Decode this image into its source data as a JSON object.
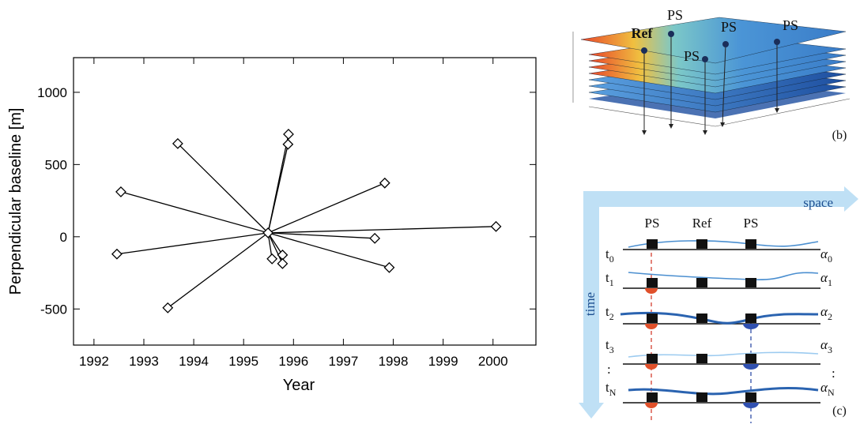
{
  "chart_data": {
    "type": "scatter",
    "x_label": "Year",
    "y_label": "Perpendicular baseline [m]",
    "series": [
      {
        "color": "#000000",
        "x": [
          1995.49,
          1992.54,
          1992.46,
          1993.68,
          1993.48,
          1995.9,
          1995.89,
          1997.83,
          1997.63,
          1997.92,
          2000.06,
          1995.57,
          1995.78,
          1995.78
        ],
        "values": [
          27,
          311,
          -120,
          645,
          -492,
          710,
          640,
          372,
          -11,
          -213,
          71,
          -153,
          -126,
          -186
        ]
      }
    ],
    "xlim": [
      1991.59,
      2000.86
    ],
    "xticks": [
      1992,
      1993,
      1994,
      1995,
      1996,
      1997,
      1998,
      1999,
      2000
    ],
    "ylim": [
      -750,
      1240
    ],
    "yticks": [
      -500,
      0,
      500,
      1000
    ]
  },
  "panel_b": {
    "ref": "Ref",
    "ps": [
      "PS",
      "PS",
      "PS",
      "PS"
    ],
    "label": "(b)"
  },
  "panel_c": {
    "space": "space",
    "time": "time",
    "columns": [
      "PS",
      "Ref",
      "PS"
    ],
    "rows": [
      {
        "t": "t",
        "t_sub": "0",
        "a": "α",
        "a_sub": "0"
      },
      {
        "t": "t",
        "t_sub": "1",
        "a": "α",
        "a_sub": "1"
      },
      {
        "t": "t",
        "t_sub": "2",
        "a": "α",
        "a_sub": "2"
      },
      {
        "t": "t",
        "t_sub": "3",
        "a": "α",
        "a_sub": "3"
      },
      {
        "t": "t",
        "t_sub": "N",
        "a": "α",
        "a_sub": "N"
      }
    ],
    "ellipsis": [
      ":",
      ":"
    ],
    "label": "(c)"
  }
}
